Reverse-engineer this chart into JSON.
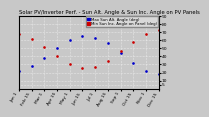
{
  "title": "Solar PV/Inverter Perf. - Sun Alt. Angle & Sun Inc. Angle on PV Panels",
  "ylim": [
    0,
    90
  ],
  "xlim": [
    0,
    11
  ],
  "yticks": [
    5,
    10,
    20,
    30,
    40,
    50,
    60,
    70,
    80,
    90
  ],
  "ytick_labels": [
    "5",
    "10",
    "20",
    "30",
    "40",
    "50",
    "60",
    "70",
    "80",
    "90"
  ],
  "xtick_positions": [
    0,
    1,
    2,
    3,
    4,
    5,
    6,
    7,
    8,
    9,
    10,
    11
  ],
  "xtick_labels": [
    "Jan 1",
    "Feb 15",
    "Mar 1",
    "Apr 15",
    "May 1",
    "Jun 15",
    "Jul 1",
    "Aug 15",
    "Sep 1",
    "Oct 15",
    "Nov 1",
    "Dec 15"
  ],
  "series": [
    {
      "label": "Max Sun Alt. Angle (deg)",
      "color": "#0000cc",
      "x": [
        0,
        1,
        2,
        3,
        4,
        5,
        6,
        7,
        8,
        9,
        10,
        11
      ],
      "y": [
        22,
        28,
        38,
        50,
        60,
        65,
        63,
        56,
        44,
        32,
        22,
        18
      ]
    },
    {
      "label": "Min Sun Inc. Angle on Panel (deg)",
      "color": "#cc0000",
      "x": [
        0,
        1,
        2,
        3,
        4,
        5,
        6,
        7,
        8,
        9,
        10,
        11
      ],
      "y": [
        68,
        62,
        52,
        40,
        30,
        25,
        27,
        34,
        46,
        58,
        68,
        72
      ]
    }
  ],
  "legend_labels": [
    "Max Sun Alt. Angle (deg)",
    "Min Sun Inc. Angle on Panel (deg)"
  ],
  "legend_colors": [
    "#0000cc",
    "#cc0000"
  ],
  "background_color": "#c8c8c8",
  "plot_background": "#c8c8c8",
  "grid_color": "#ffffff",
  "title_fontsize": 3.8,
  "tick_fontsize": 3.2,
  "legend_fontsize": 2.8,
  "marker_size": 1.8
}
